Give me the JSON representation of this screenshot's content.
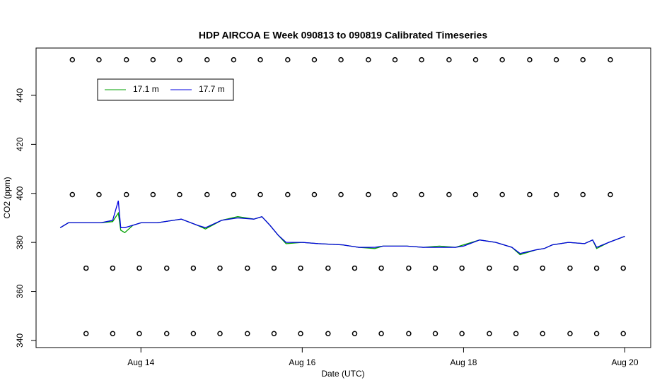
{
  "chart_data": {
    "type": "line",
    "title": "HDP AIRCOA E  Week 090813 to 090819  Calibrated Timeseries",
    "x_label": "Date (UTC)",
    "y_label": "CO2 (ppm)",
    "xlim": [
      12.7,
      20.32
    ],
    "ylim": [
      337.1,
      459.3
    ],
    "xticks": [
      {
        "value": 14,
        "label": "Aug 14"
      },
      {
        "value": 16,
        "label": "Aug 16"
      },
      {
        "value": 18,
        "label": "Aug 18"
      },
      {
        "value": 20,
        "label": "Aug 20"
      }
    ],
    "yticks": [
      340,
      360,
      380,
      400,
      420,
      440
    ],
    "legend": "top-left",
    "series": [
      {
        "name": "17.1 m",
        "color": "#00a000",
        "x": [
          13.0,
          13.1,
          13.3,
          13.5,
          13.65,
          13.72,
          13.75,
          13.8,
          13.9,
          14.0,
          14.2,
          14.5,
          14.7,
          14.8,
          15.0,
          15.2,
          15.4,
          15.5,
          15.6,
          15.7,
          15.8,
          16.0,
          16.2,
          16.5,
          16.7,
          16.9,
          17.0,
          17.3,
          17.5,
          17.7,
          17.9,
          18.0,
          18.2,
          18.4,
          18.6,
          18.7,
          18.9,
          19.0,
          19.1,
          19.3,
          19.5,
          19.6,
          19.65,
          19.8,
          20.0
        ],
        "values": [
          386,
          388,
          388,
          388,
          388.5,
          392,
          385,
          384,
          387,
          388,
          388,
          389.5,
          387,
          385.5,
          389,
          390.5,
          389.5,
          390.5,
          387,
          383,
          379.5,
          380,
          379.5,
          379,
          378,
          377.5,
          378.5,
          378.5,
          378,
          378.5,
          378,
          379,
          381,
          380,
          378,
          375,
          377,
          377.5,
          379,
          380,
          379.5,
          381,
          377.5,
          380,
          382.5
        ]
      },
      {
        "name": "17.7 m",
        "color": "#0000e0",
        "x": [
          13.0,
          13.1,
          13.3,
          13.5,
          13.65,
          13.72,
          13.75,
          13.8,
          13.9,
          14.0,
          14.2,
          14.5,
          14.7,
          14.8,
          15.0,
          15.2,
          15.4,
          15.5,
          15.6,
          15.7,
          15.8,
          16.0,
          16.2,
          16.5,
          16.7,
          16.9,
          17.0,
          17.3,
          17.5,
          17.7,
          17.9,
          18.0,
          18.2,
          18.4,
          18.6,
          18.7,
          18.9,
          19.0,
          19.1,
          19.3,
          19.5,
          19.6,
          19.65,
          19.8,
          20.0
        ],
        "values": [
          386,
          388,
          388,
          388,
          389,
          397,
          386,
          386,
          387,
          388,
          388,
          389.5,
          387,
          386,
          389,
          390,
          389.5,
          390.5,
          387,
          383,
          380,
          380,
          379.5,
          379,
          378,
          378,
          378.5,
          378.5,
          378,
          378,
          378,
          378.5,
          381,
          380,
          378,
          375.5,
          377,
          377.5,
          379,
          380,
          379.5,
          381,
          378,
          380,
          382.5
        ]
      }
    ],
    "markers": [
      {
        "y": 454.5,
        "x": [
          13.15,
          13.48,
          13.82,
          14.15,
          14.48,
          14.82,
          15.15,
          15.48,
          15.82,
          16.15,
          16.48,
          16.82,
          17.15,
          17.48,
          17.82,
          18.15,
          18.48,
          18.82,
          19.15,
          19.48,
          19.82
        ]
      },
      {
        "y": 399.5,
        "x": [
          13.15,
          13.48,
          13.82,
          14.15,
          14.48,
          14.82,
          15.15,
          15.48,
          15.82,
          16.15,
          16.48,
          16.82,
          17.15,
          17.48,
          17.82,
          18.15,
          18.48,
          18.82,
          19.15,
          19.48,
          19.82
        ]
      },
      {
        "y": 369.5,
        "x": [
          13.32,
          13.65,
          13.98,
          14.32,
          14.65,
          14.98,
          15.32,
          15.65,
          15.98,
          16.32,
          16.65,
          16.98,
          17.32,
          17.65,
          17.98,
          18.32,
          18.65,
          18.98,
          19.32,
          19.65,
          19.98
        ]
      },
      {
        "y": 342.8,
        "x": [
          13.32,
          13.65,
          13.98,
          14.32,
          14.65,
          14.98,
          15.32,
          15.65,
          15.98,
          16.32,
          16.65,
          16.98,
          17.32,
          17.65,
          17.98,
          18.32,
          18.65,
          18.98,
          19.32,
          19.65,
          19.98
        ]
      }
    ]
  }
}
